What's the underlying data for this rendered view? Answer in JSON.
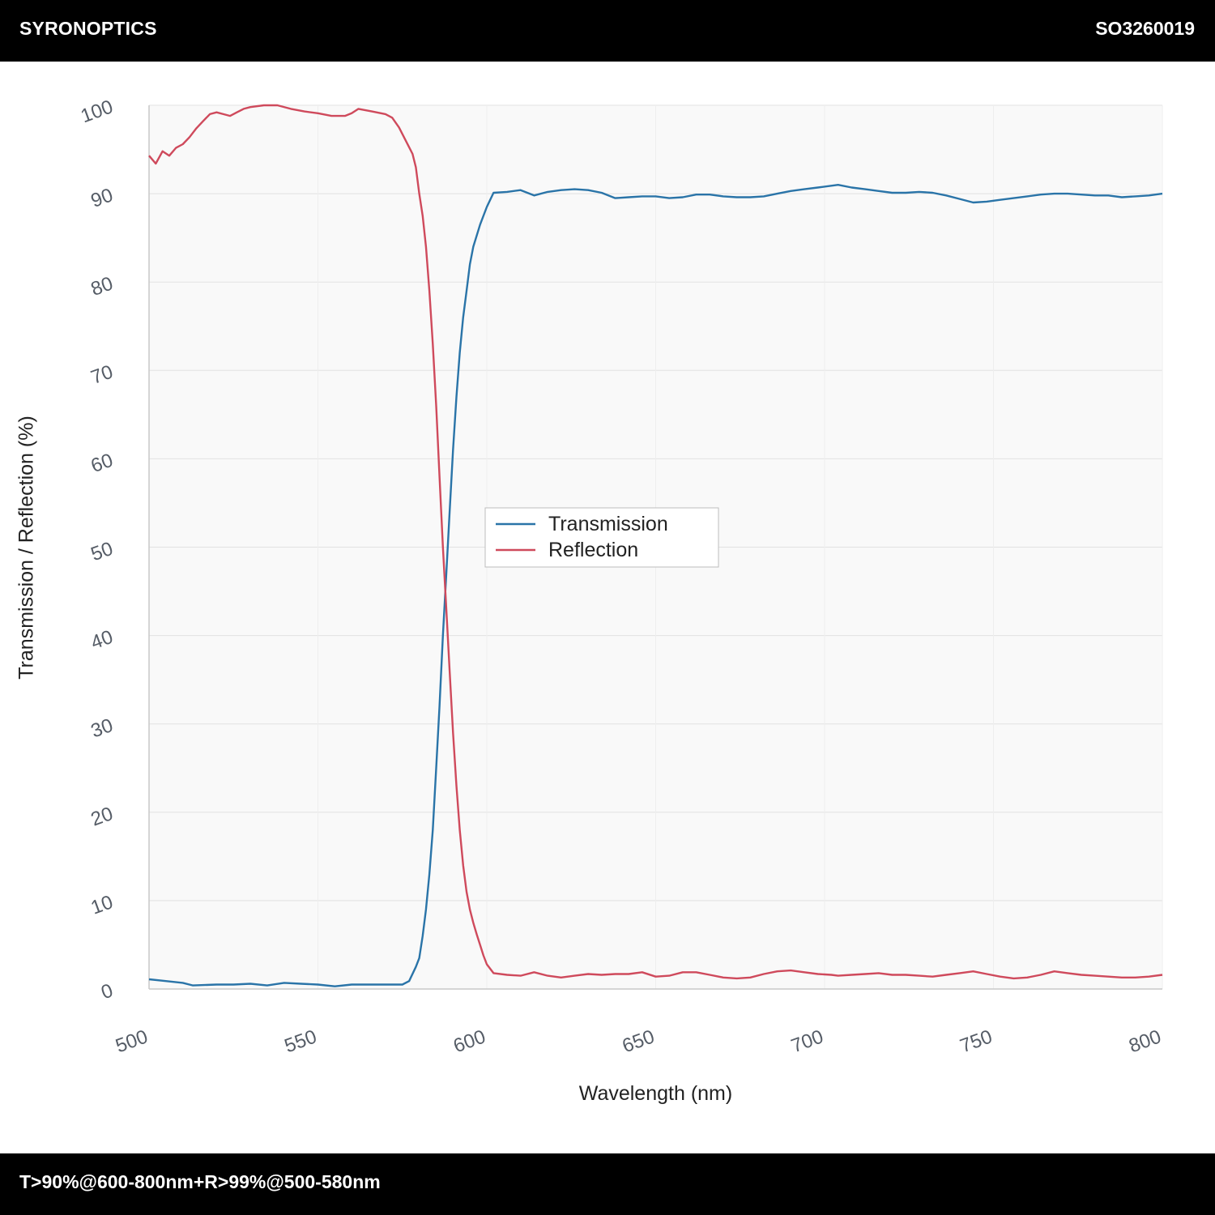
{
  "header": {
    "brand": "SYRONOPTICS",
    "part_number": "SO3260019"
  },
  "footer": {
    "spec": "T>90%@600-800nm+R>99%@500-580nm"
  },
  "colors": {
    "transmission": "#2a74a8",
    "reflection": "#cf4a5c",
    "plot_background": "#f9f9f9",
    "grid": "#e2e2e2",
    "bars": "#000000"
  },
  "chart_data": {
    "type": "line",
    "xlabel": "Wavelength (nm)",
    "ylabel": "Transmission / Reflection (%)",
    "xlim": [
      500,
      800
    ],
    "ylim": [
      0,
      100
    ],
    "x_ticks": [
      500,
      550,
      600,
      650,
      700,
      750,
      800
    ],
    "y_ticks": [
      0,
      10,
      20,
      30,
      40,
      50,
      60,
      70,
      80,
      90,
      100
    ],
    "grid": true,
    "legend_position": "center",
    "series": [
      {
        "name": "Transmission",
        "color": "#2a74a8",
        "points": [
          [
            500,
            1.1
          ],
          [
            505,
            0.9
          ],
          [
            510,
            0.7
          ],
          [
            513,
            0.4
          ],
          [
            520,
            0.5
          ],
          [
            525,
            0.5
          ],
          [
            530,
            0.6
          ],
          [
            535,
            0.4
          ],
          [
            540,
            0.7
          ],
          [
            545,
            0.6
          ],
          [
            550,
            0.5
          ],
          [
            555,
            0.3
          ],
          [
            560,
            0.5
          ],
          [
            565,
            0.5
          ],
          [
            570,
            0.5
          ],
          [
            575,
            0.5
          ],
          [
            577,
            0.9
          ],
          [
            579,
            2.5
          ],
          [
            580,
            3.5
          ],
          [
            581,
            6
          ],
          [
            582,
            9
          ],
          [
            583,
            13
          ],
          [
            584,
            18
          ],
          [
            585,
            25
          ],
          [
            586,
            32
          ],
          [
            587,
            40
          ],
          [
            588,
            47
          ],
          [
            589,
            54
          ],
          [
            590,
            61
          ],
          [
            591,
            67
          ],
          [
            592,
            72
          ],
          [
            593,
            76
          ],
          [
            594,
            79
          ],
          [
            595,
            82
          ],
          [
            596,
            84
          ],
          [
            598,
            86.5
          ],
          [
            600,
            88.5
          ],
          [
            602,
            90.1
          ],
          [
            606,
            90.2
          ],
          [
            610,
            90.4
          ],
          [
            614,
            89.8
          ],
          [
            618,
            90.2
          ],
          [
            622,
            90.4
          ],
          [
            626,
            90.5
          ],
          [
            630,
            90.4
          ],
          [
            634,
            90.1
          ],
          [
            638,
            89.5
          ],
          [
            642,
            89.6
          ],
          [
            646,
            89.7
          ],
          [
            650,
            89.7
          ],
          [
            654,
            89.5
          ],
          [
            658,
            89.6
          ],
          [
            662,
            89.9
          ],
          [
            666,
            89.9
          ],
          [
            670,
            89.7
          ],
          [
            674,
            89.6
          ],
          [
            678,
            89.6
          ],
          [
            682,
            89.7
          ],
          [
            686,
            90.0
          ],
          [
            690,
            90.3
          ],
          [
            694,
            90.5
          ],
          [
            698,
            90.7
          ],
          [
            702,
            90.9
          ],
          [
            704,
            91.0
          ],
          [
            708,
            90.7
          ],
          [
            712,
            90.5
          ],
          [
            716,
            90.3
          ],
          [
            720,
            90.1
          ],
          [
            724,
            90.1
          ],
          [
            728,
            90.2
          ],
          [
            732,
            90.1
          ],
          [
            736,
            89.8
          ],
          [
            740,
            89.4
          ],
          [
            744,
            89.0
          ],
          [
            748,
            89.1
          ],
          [
            752,
            89.3
          ],
          [
            756,
            89.5
          ],
          [
            760,
            89.7
          ],
          [
            764,
            89.9
          ],
          [
            768,
            90.0
          ],
          [
            772,
            90.0
          ],
          [
            776,
            89.9
          ],
          [
            780,
            89.8
          ],
          [
            784,
            89.8
          ],
          [
            788,
            89.6
          ],
          [
            792,
            89.7
          ],
          [
            796,
            89.8
          ],
          [
            800,
            90.0
          ]
        ]
      },
      {
        "name": "Reflection",
        "color": "#cf4a5c",
        "points": [
          [
            500,
            94.3
          ],
          [
            502,
            93.4
          ],
          [
            504,
            94.8
          ],
          [
            506,
            94.3
          ],
          [
            508,
            95.2
          ],
          [
            510,
            95.6
          ],
          [
            512,
            96.4
          ],
          [
            514,
            97.4
          ],
          [
            516,
            98.2
          ],
          [
            518,
            99.0
          ],
          [
            520,
            99.2
          ],
          [
            522,
            99.0
          ],
          [
            524,
            98.8
          ],
          [
            526,
            99.2
          ],
          [
            528,
            99.6
          ],
          [
            530,
            99.8
          ],
          [
            534,
            100.0
          ],
          [
            538,
            100.0
          ],
          [
            542,
            99.6
          ],
          [
            546,
            99.3
          ],
          [
            550,
            99.1
          ],
          [
            554,
            98.8
          ],
          [
            558,
            98.8
          ],
          [
            560,
            99.1
          ],
          [
            562,
            99.6
          ],
          [
            566,
            99.3
          ],
          [
            570,
            99.0
          ],
          [
            572,
            98.6
          ],
          [
            574,
            97.5
          ],
          [
            576,
            96.0
          ],
          [
            578,
            94.5
          ],
          [
            579,
            93.0
          ],
          [
            580,
            90.0
          ],
          [
            581,
            87.5
          ],
          [
            582,
            84.0
          ],
          [
            583,
            79.0
          ],
          [
            584,
            73.0
          ],
          [
            585,
            66.0
          ],
          [
            586,
            58.0
          ],
          [
            587,
            50.0
          ],
          [
            588,
            43.0
          ],
          [
            589,
            36.0
          ],
          [
            590,
            29.0
          ],
          [
            591,
            23.0
          ],
          [
            592,
            18.0
          ],
          [
            593,
            14.0
          ],
          [
            594,
            11.0
          ],
          [
            595,
            9.0
          ],
          [
            596,
            7.5
          ],
          [
            597,
            6.2
          ],
          [
            598,
            5.0
          ],
          [
            599,
            3.8
          ],
          [
            600,
            2.8
          ],
          [
            602,
            1.8
          ],
          [
            606,
            1.6
          ],
          [
            610,
            1.5
          ],
          [
            614,
            1.9
          ],
          [
            618,
            1.5
          ],
          [
            622,
            1.3
          ],
          [
            626,
            1.5
          ],
          [
            630,
            1.7
          ],
          [
            634,
            1.6
          ],
          [
            638,
            1.7
          ],
          [
            642,
            1.7
          ],
          [
            646,
            1.9
          ],
          [
            650,
            1.4
          ],
          [
            654,
            1.5
          ],
          [
            658,
            1.9
          ],
          [
            662,
            1.9
          ],
          [
            666,
            1.6
          ],
          [
            670,
            1.3
          ],
          [
            674,
            1.2
          ],
          [
            678,
            1.3
          ],
          [
            682,
            1.7
          ],
          [
            686,
            2.0
          ],
          [
            690,
            2.1
          ],
          [
            694,
            1.9
          ],
          [
            698,
            1.7
          ],
          [
            702,
            1.6
          ],
          [
            704,
            1.5
          ],
          [
            708,
            1.6
          ],
          [
            712,
            1.7
          ],
          [
            716,
            1.8
          ],
          [
            720,
            1.6
          ],
          [
            724,
            1.6
          ],
          [
            728,
            1.5
          ],
          [
            732,
            1.4
          ],
          [
            736,
            1.6
          ],
          [
            740,
            1.8
          ],
          [
            744,
            2.0
          ],
          [
            748,
            1.7
          ],
          [
            752,
            1.4
          ],
          [
            756,
            1.2
          ],
          [
            760,
            1.3
          ],
          [
            764,
            1.6
          ],
          [
            768,
            2.0
          ],
          [
            772,
            1.8
          ],
          [
            776,
            1.6
          ],
          [
            780,
            1.5
          ],
          [
            784,
            1.4
          ],
          [
            788,
            1.3
          ],
          [
            792,
            1.3
          ],
          [
            796,
            1.4
          ],
          [
            800,
            1.6
          ]
        ]
      }
    ]
  }
}
